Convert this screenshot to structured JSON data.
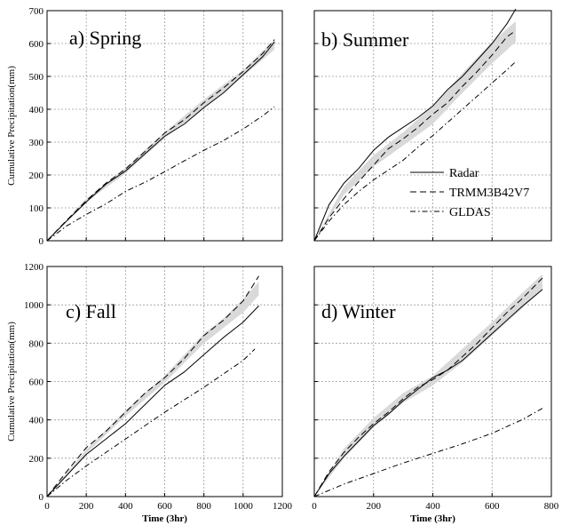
{
  "chart_data": [
    {
      "type": "line",
      "title": "a) Spring",
      "xlabel": "",
      "ylabel": "Cumulative Precipitation(mm)",
      "xlim": [
        0,
        1200
      ],
      "ylim": [
        0,
        700
      ],
      "xticks": [
        0,
        200,
        400,
        600,
        800,
        1000,
        1200
      ],
      "yticks": [
        0,
        100,
        200,
        300,
        400,
        500,
        600,
        700
      ],
      "show_xtick_labels": false,
      "show_ytick_labels": true,
      "grid": true,
      "band": {
        "x": [
          0,
          200,
          400,
          600,
          800,
          1000,
          1160
        ],
        "lower": [
          0,
          118,
          205,
          312,
          405,
          500,
          582
        ],
        "upper": [
          0,
          128,
          222,
          330,
          430,
          520,
          612
        ]
      },
      "series": [
        {
          "name": "Radar",
          "style": "solid",
          "x": [
            0,
            100,
            200,
            300,
            400,
            500,
            600,
            700,
            800,
            900,
            1000,
            1100,
            1160
          ],
          "y": [
            0,
            60,
            118,
            172,
            212,
            265,
            318,
            355,
            405,
            450,
            505,
            560,
            605
          ]
        },
        {
          "name": "TRMM3B42V7",
          "style": "dashed",
          "x": [
            0,
            100,
            200,
            300,
            400,
            500,
            600,
            700,
            800,
            900,
            1000,
            1100,
            1160
          ],
          "y": [
            0,
            62,
            122,
            175,
            218,
            272,
            328,
            368,
            420,
            465,
            515,
            570,
            612
          ]
        },
        {
          "name": "GLDAS",
          "style": "dashdot",
          "x": [
            0,
            100,
            200,
            300,
            400,
            500,
            600,
            700,
            800,
            900,
            1000,
            1100,
            1160
          ],
          "y": [
            0,
            45,
            80,
            112,
            150,
            178,
            210,
            243,
            275,
            305,
            340,
            380,
            408
          ]
        }
      ]
    },
    {
      "type": "line",
      "title": "b) Summer",
      "xlabel": "",
      "ylabel": "",
      "xlim": [
        0,
        800
      ],
      "ylim": [
        0,
        700
      ],
      "xticks": [
        0,
        200,
        400,
        600,
        800
      ],
      "yticks": [
        0,
        100,
        200,
        300,
        400,
        500,
        600,
        700
      ],
      "show_xtick_labels": false,
      "show_ytick_labels": false,
      "grid": true,
      "band": {
        "x": [
          0,
          100,
          200,
          300,
          400,
          500,
          600,
          680
        ],
        "lower": [
          0,
          140,
          225,
          290,
          355,
          450,
          540,
          605
        ],
        "upper": [
          0,
          165,
          260,
          330,
          410,
          510,
          605,
          668
        ]
      },
      "series": [
        {
          "name": "Radar",
          "style": "solid",
          "x": [
            0,
            50,
            100,
            150,
            200,
            250,
            300,
            350,
            400,
            450,
            500,
            550,
            600,
            650,
            680
          ],
          "y": [
            0,
            110,
            175,
            220,
            275,
            315,
            345,
            375,
            410,
            460,
            500,
            550,
            600,
            660,
            705
          ]
        },
        {
          "name": "TRMM3B42V7",
          "style": "dashed",
          "x": [
            0,
            50,
            100,
            150,
            200,
            250,
            300,
            350,
            400,
            450,
            500,
            550,
            600,
            650,
            680
          ],
          "y": [
            0,
            70,
            128,
            180,
            230,
            280,
            310,
            345,
            385,
            420,
            470,
            515,
            565,
            620,
            640
          ]
        },
        {
          "name": "GLDAS",
          "style": "dashdot",
          "x": [
            0,
            50,
            100,
            150,
            200,
            250,
            300,
            350,
            400,
            450,
            500,
            550,
            600,
            650,
            680
          ],
          "y": [
            0,
            60,
            110,
            150,
            185,
            215,
            245,
            285,
            320,
            360,
            400,
            440,
            480,
            520,
            545
          ]
        }
      ]
    },
    {
      "type": "line",
      "title": "c) Fall",
      "xlabel": "Time (3hr)",
      "ylabel": "Cumulative Precipitation(mm)",
      "xlim": [
        0,
        1200
      ],
      "ylim": [
        0,
        1200
      ],
      "xticks": [
        0,
        200,
        400,
        600,
        800,
        1000,
        1200
      ],
      "yticks": [
        0,
        200,
        400,
        600,
        800,
        1000,
        1200
      ],
      "show_xtick_labels": true,
      "show_ytick_labels": true,
      "grid": true,
      "band": {
        "x": [
          0,
          200,
          400,
          600,
          800,
          900,
          1000,
          1080
        ],
        "lower": [
          0,
          225,
          420,
          595,
          800,
          880,
          960,
          1050
        ],
        "upper": [
          0,
          245,
          450,
          630,
          850,
          930,
          1030,
          1120
        ]
      },
      "series": [
        {
          "name": "Radar",
          "style": "solid",
          "x": [
            0,
            100,
            200,
            300,
            400,
            500,
            600,
            700,
            800,
            900,
            1000,
            1080
          ],
          "y": [
            0,
            110,
            220,
            300,
            380,
            480,
            580,
            650,
            740,
            830,
            910,
            995
          ]
        },
        {
          "name": "TRMM3B42V7",
          "style": "dashed",
          "x": [
            0,
            100,
            200,
            300,
            400,
            500,
            600,
            700,
            800,
            900,
            1000,
            1080
          ],
          "y": [
            0,
            130,
            255,
            340,
            440,
            540,
            620,
            720,
            840,
            920,
            1020,
            1150
          ]
        },
        {
          "name": "GLDAS",
          "style": "dashdot",
          "x": [
            0,
            100,
            200,
            300,
            400,
            500,
            600,
            700,
            800,
            900,
            1000,
            1060
          ],
          "y": [
            0,
            85,
            160,
            230,
            300,
            370,
            440,
            505,
            570,
            640,
            710,
            770
          ]
        }
      ]
    },
    {
      "type": "line",
      "title": "d) Winter",
      "xlabel": "Time (3hr)",
      "ylabel": "",
      "xlim": [
        0,
        800
      ],
      "ylim": [
        0,
        1200
      ],
      "xticks": [
        0,
        200,
        400,
        600,
        800
      ],
      "yticks": [
        0,
        200,
        400,
        600,
        800,
        1000,
        1200
      ],
      "show_xtick_labels": true,
      "show_ytick_labels": false,
      "grid": true,
      "band": {
        "x": [
          0,
          100,
          200,
          300,
          400,
          500,
          600,
          700,
          770
        ],
        "lower": [
          0,
          200,
          360,
          490,
          580,
          700,
          840,
          980,
          1080
        ],
        "upper": [
          0,
          250,
          410,
          540,
          630,
          770,
          910,
          1060,
          1160
        ]
      },
      "series": [
        {
          "name": "Radar",
          "style": "solid",
          "x": [
            0,
            50,
            100,
            150,
            200,
            250,
            300,
            350,
            400,
            450,
            500,
            550,
            600,
            650,
            700,
            770
          ],
          "y": [
            0,
            120,
            210,
            290,
            370,
            430,
            500,
            560,
            620,
            660,
            710,
            780,
            850,
            920,
            990,
            1080
          ]
        },
        {
          "name": "TRMM3B42V7",
          "style": "dashed",
          "x": [
            0,
            50,
            100,
            150,
            200,
            250,
            300,
            350,
            400,
            450,
            500,
            550,
            600,
            650,
            700,
            770
          ],
          "y": [
            0,
            130,
            230,
            310,
            380,
            440,
            510,
            570,
            610,
            660,
            730,
            800,
            880,
            960,
            1030,
            1140
          ]
        },
        {
          "name": "GLDAS",
          "style": "dashdot",
          "x": [
            0,
            100,
            200,
            300,
            400,
            500,
            600,
            700,
            770
          ],
          "y": [
            0,
            65,
            120,
            175,
            225,
            275,
            330,
            400,
            460
          ]
        }
      ]
    }
  ],
  "legend": {
    "placement": "inside b) Summer, lower-right",
    "items": [
      {
        "name": "Radar",
        "style": "solid"
      },
      {
        "name": "TRMM3B42V7",
        "style": "dashed"
      },
      {
        "name": "GLDAS",
        "style": "dashdot"
      }
    ]
  }
}
